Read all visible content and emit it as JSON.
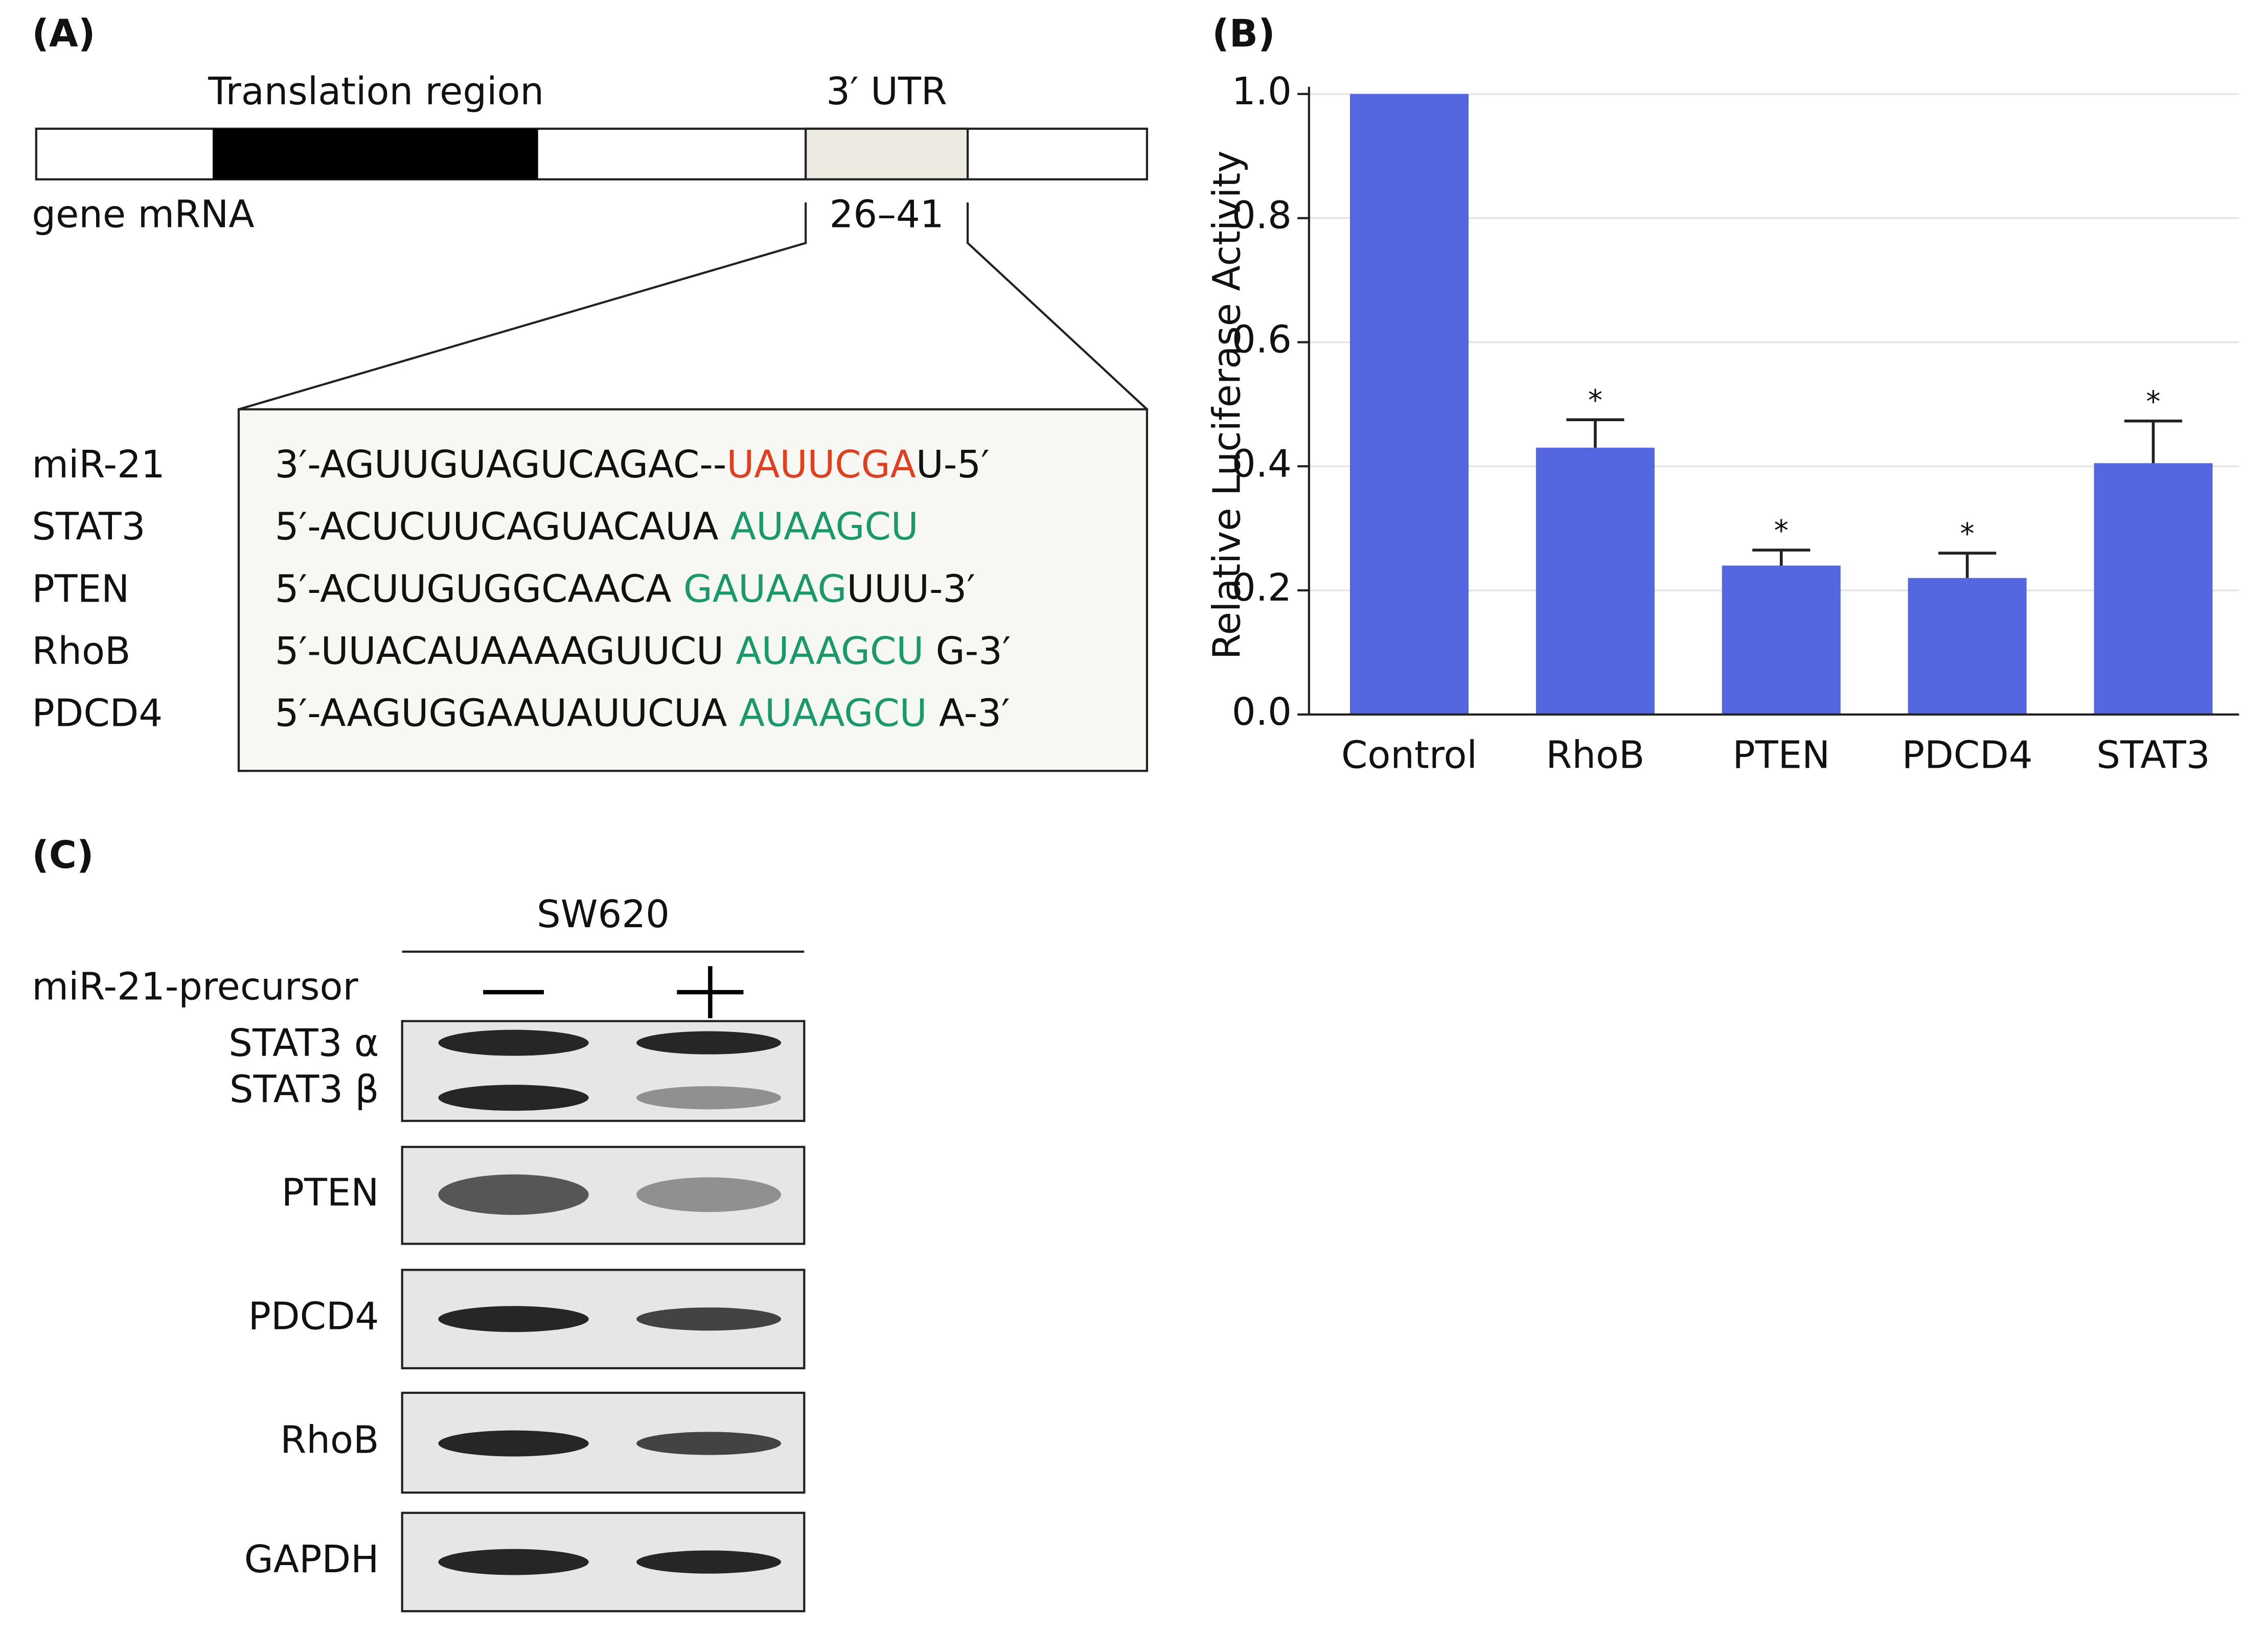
{
  "panel_a": {
    "label": "(A)",
    "translation_label": "Translation region",
    "utr_label": "3′ UTR",
    "gene_label": "gene mRNA",
    "site_label": "26–41",
    "sequences": [
      {
        "name": "miR-21",
        "segments": [
          {
            "text": "3′-AGUUGUAGUCAGAC--",
            "color": "#111111"
          },
          {
            "text": "UAUUCGA",
            "color": "#e0401f"
          },
          {
            "text": "U-5′",
            "color": "#111111"
          }
        ]
      },
      {
        "name": "STAT3",
        "segments": [
          {
            "text": "5′-ACUCUUCAGUACAUA ",
            "color": "#111111"
          },
          {
            "text": "AUAAGCU",
            "color": "#1a9a6c"
          }
        ]
      },
      {
        "name": "PTEN",
        "segments": [
          {
            "text": "5′-ACUUGUGGCAACA ",
            "color": "#111111"
          },
          {
            "text": "GAUAAG",
            "color": "#1a9a6c"
          },
          {
            "text": "UUU-3′",
            "color": "#111111"
          }
        ]
      },
      {
        "name": "RhoB",
        "segments": [
          {
            "text": "5′-UUACAUAAAAGUUCU ",
            "color": "#111111"
          },
          {
            "text": "AUAAGCU",
            "color": "#1a9a6c"
          },
          {
            "text": " G-3′",
            "color": "#111111"
          }
        ]
      },
      {
        "name": "PDCD4",
        "segments": [
          {
            "text": "5′-AAGUGGAAUAUUCUA ",
            "color": "#111111"
          },
          {
            "text": "AUAAGCU",
            "color": "#1a9a6c"
          },
          {
            "text": " A-3′",
            "color": "#111111"
          }
        ]
      }
    ]
  },
  "panel_b_label": "(B)",
  "chart_data": {
    "type": "bar",
    "y_label": "Relative Luciferase Activity",
    "categories": [
      "Control",
      "RhoB",
      "PTEN",
      "PDCD4",
      "STAT3"
    ],
    "values": [
      1.0,
      0.43,
      0.24,
      0.22,
      0.405
    ],
    "errors": [
      null,
      0.045,
      0.025,
      0.04,
      0.068
    ],
    "significance_marks": [
      null,
      "*",
      "*",
      "*",
      "*"
    ],
    "color": "#5567e0",
    "ylim": [
      0,
      1.0
    ],
    "yticks": [
      {
        "value": 0,
        "label": "0.0"
      },
      0.2,
      0.4,
      0.6,
      0.8,
      {
        "value": 1,
        "label": "1.0"
      }
    ],
    "grid": true
  },
  "panel_c": {
    "label": "(C)",
    "cell_line": "SW620",
    "treatment_label": "miR-21-precursor",
    "blots": [
      {
        "labels": [
          "STAT3 α",
          "STAT3 β"
        ]
      },
      {
        "labels": [
          "PTEN"
        ]
      },
      {
        "labels": [
          "PDCD4"
        ]
      },
      {
        "labels": [
          "RhoB"
        ]
      },
      {
        "labels": [
          "GAPDH"
        ]
      }
    ]
  }
}
